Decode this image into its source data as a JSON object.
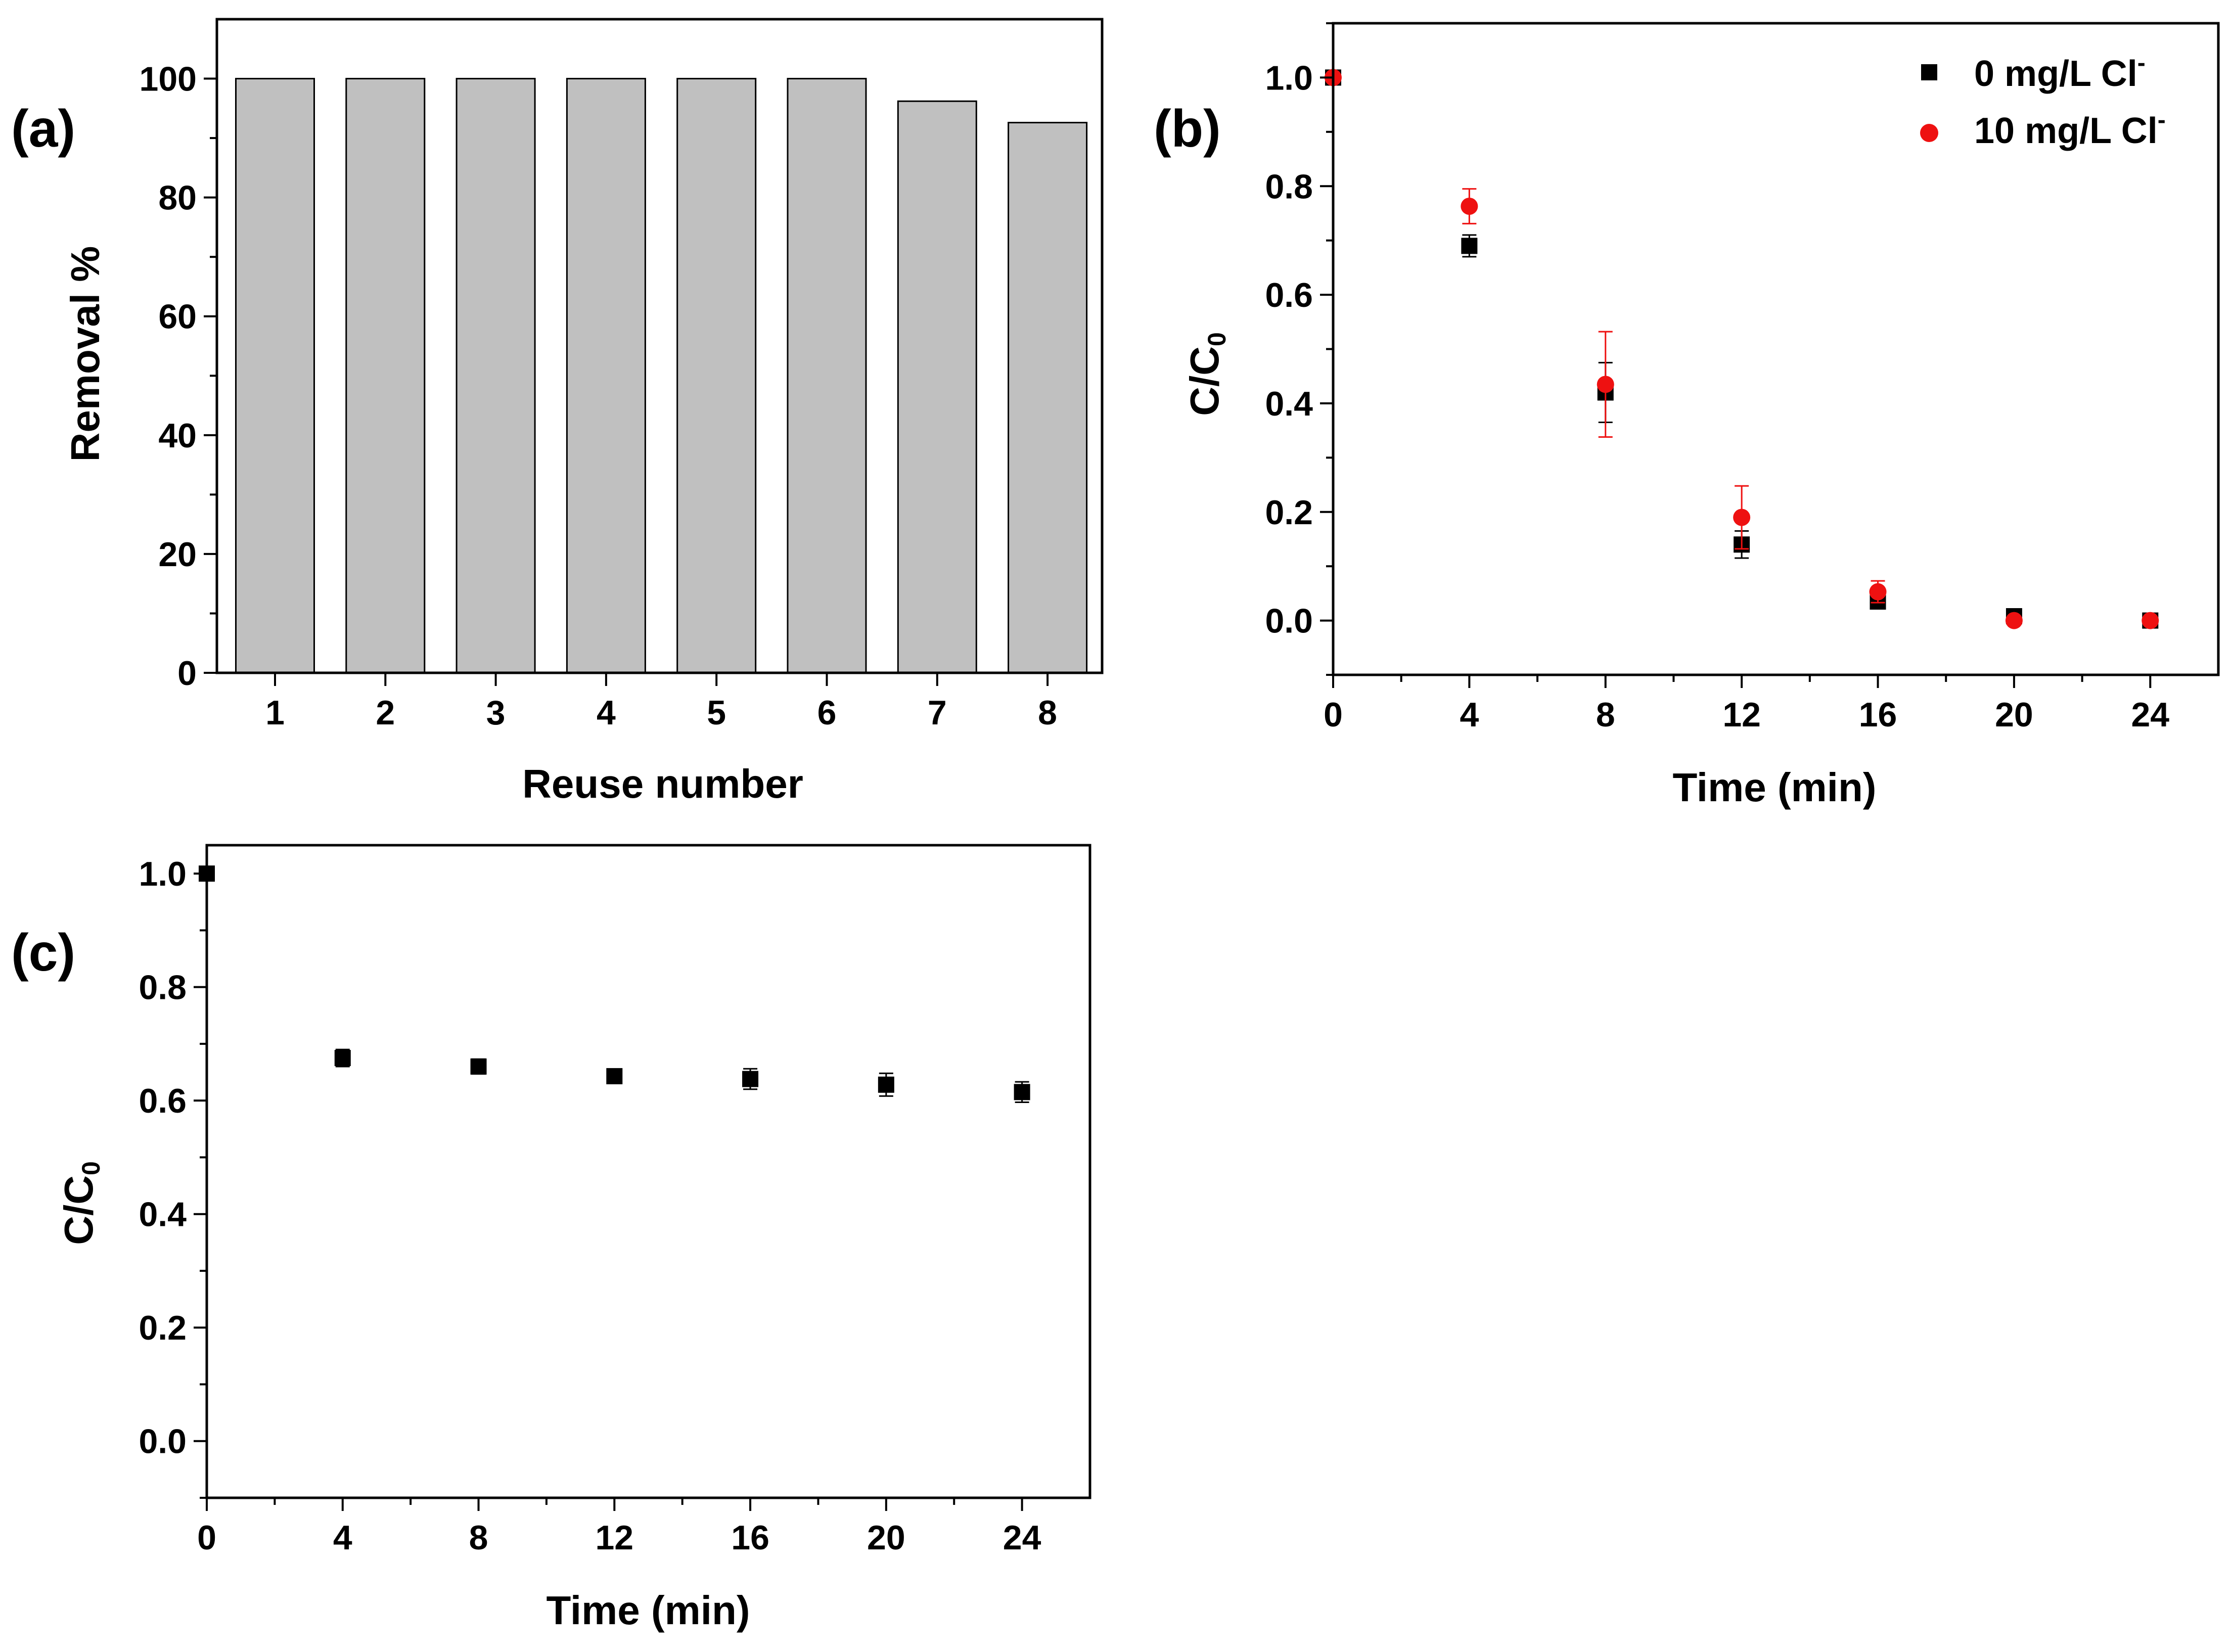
{
  "chart_data": [
    {
      "id": "a",
      "type": "bar",
      "panel_label": "(a)",
      "title": "",
      "xlabel": "Reuse number",
      "ylabel": "Removal %",
      "categories": [
        "1",
        "2",
        "3",
        "4",
        "5",
        "6",
        "7",
        "8"
      ],
      "values": [
        100,
        100,
        100,
        100,
        100,
        100,
        96.2,
        92.6
      ],
      "ylim": [
        0,
        110
      ],
      "yticks": [
        0,
        20,
        40,
        60,
        80,
        100
      ],
      "ytick_labels": [
        "0",
        "20",
        "40",
        "60",
        "80",
        "100"
      ],
      "bar_color": "#c0c0c0",
      "grid": false
    },
    {
      "id": "b",
      "type": "scatter",
      "panel_label": "(b)",
      "title": "",
      "xlabel": "Time (min)",
      "ylabel_main": "C/C",
      "ylabel_sub": "0",
      "xlim": [
        0,
        26
      ],
      "ylim": [
        -0.1,
        1.1
      ],
      "xticks": [
        0,
        4,
        8,
        12,
        16,
        20,
        24
      ],
      "xtick_labels": [
        "0",
        "4",
        "8",
        "12",
        "16",
        "20",
        "24"
      ],
      "yticks": [
        0.0,
        0.2,
        0.4,
        0.6,
        0.8,
        1.0
      ],
      "ytick_labels": [
        "0.0",
        "0.2",
        "0.4",
        "0.6",
        "0.8",
        "1.0"
      ],
      "legend_position": "top-right",
      "series": [
        {
          "name": "0 mg/L Cl",
          "name_sup": "-",
          "marker": "square",
          "color": "#000000",
          "x": [
            0,
            4,
            8,
            12,
            16,
            20,
            24
          ],
          "y": [
            1.0,
            0.69,
            0.42,
            0.14,
            0.035,
            0.008,
            0.0
          ],
          "err": [
            0,
            0.02,
            0.055,
            0.025,
            0.01,
            0.005,
            0.005
          ]
        },
        {
          "name": "10 mg/L Cl",
          "name_sup": "-",
          "marker": "circle",
          "color": "#ee1111",
          "x": [
            0,
            4,
            8,
            12,
            16,
            20,
            24
          ],
          "y": [
            1.0,
            0.763,
            0.435,
            0.19,
            0.053,
            0.0,
            0.0
          ],
          "err": [
            0,
            0.032,
            0.097,
            0.058,
            0.02,
            0.005,
            0.005
          ]
        }
      ],
      "grid": false
    },
    {
      "id": "c",
      "type": "scatter",
      "panel_label": "(c)",
      "title": "",
      "xlabel": "Time (min)",
      "ylabel_main": "C/C",
      "ylabel_sub": "0",
      "xlim": [
        0,
        26
      ],
      "ylim": [
        -0.1,
        1.05
      ],
      "xticks": [
        0,
        4,
        8,
        12,
        16,
        20,
        24
      ],
      "xtick_labels": [
        "0",
        "4",
        "8",
        "12",
        "16",
        "20",
        "24"
      ],
      "yticks": [
        0.0,
        0.2,
        0.4,
        0.6,
        0.8,
        1.0
      ],
      "ytick_labels": [
        "0.0",
        "0.2",
        "0.4",
        "0.6",
        "0.8",
        "1.0"
      ],
      "series": [
        {
          "name": "C/C0",
          "marker": "square",
          "color": "#000000",
          "x": [
            0,
            4,
            8,
            12,
            16,
            20,
            24
          ],
          "y": [
            1.0,
            0.675,
            0.66,
            0.643,
            0.638,
            0.628,
            0.615
          ],
          "err": [
            0,
            0.015,
            0.013,
            0.012,
            0.018,
            0.02,
            0.018
          ]
        }
      ],
      "grid": false
    }
  ]
}
